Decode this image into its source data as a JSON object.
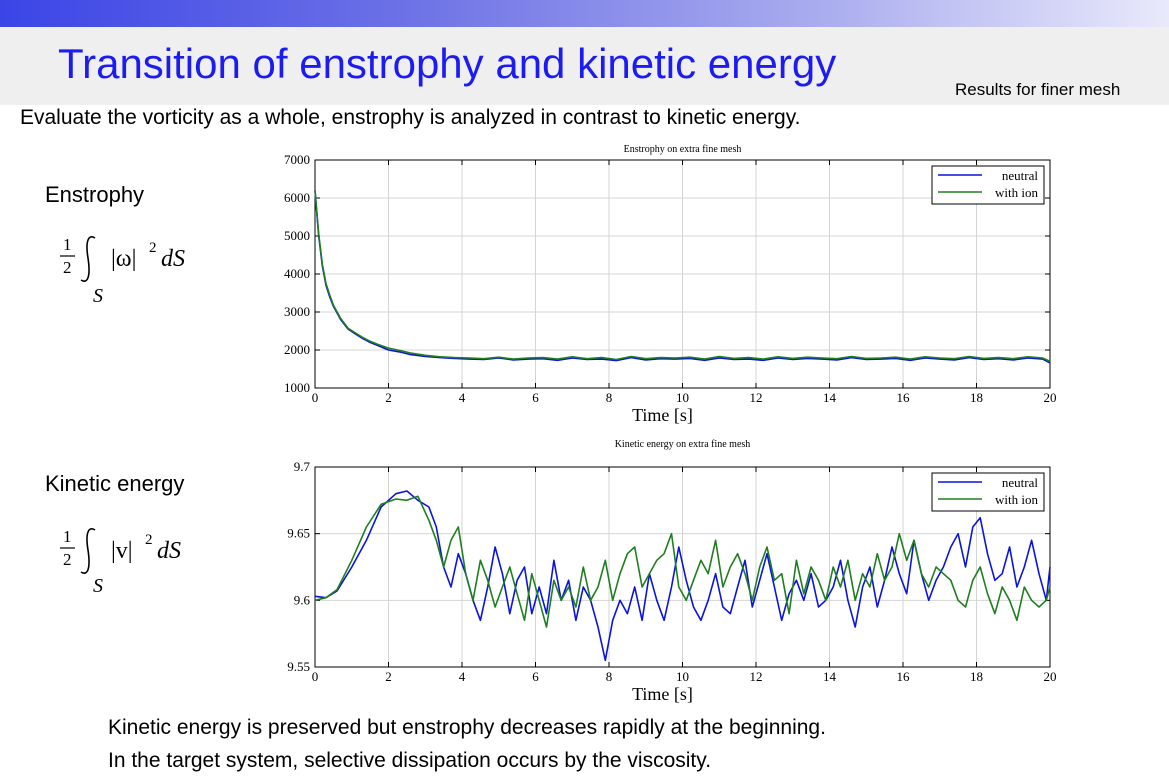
{
  "header": {
    "title": "Transition of enstrophy and kinetic energy",
    "note": "Results for finer mesh"
  },
  "intro_text": "Evaluate the vorticity as a whole, enstrophy is analyzed in contrast to kinetic energy.",
  "left_panel": {
    "enstrophy_label": "Enstrophy",
    "enstrophy_formula": {
      "coef_num": "1",
      "coef_den": "2",
      "subscript": "S",
      "integrand": "|ω|",
      "power": "2",
      "differential": "dS"
    },
    "kinetic_label": "Kinetic energy",
    "kinetic_formula": {
      "coef_num": "1",
      "coef_den": "2",
      "subscript": "S",
      "integrand": "|v|",
      "power": "2",
      "differential": "dS"
    }
  },
  "conclusion": [
    "Kinetic energy is preserved but enstrophy decreases rapidly at the beginning.",
    "In the target system, selective dissipation occurs by the viscosity."
  ],
  "colors": {
    "title": "#1c1cf2",
    "neutral": "#0a14dc",
    "with_ion": "#1f7f1f"
  },
  "chart_data": [
    {
      "type": "line",
      "title": "Enstrophy on extra fine mesh",
      "xlabel": "Time [s]",
      "ylabel": "",
      "xlim": [
        0,
        20
      ],
      "ylim": [
        1000,
        7000
      ],
      "xticks": [
        0,
        2,
        4,
        6,
        8,
        10,
        12,
        14,
        16,
        18,
        20
      ],
      "yticks": [
        1000,
        2000,
        3000,
        4000,
        5000,
        6000,
        7000
      ],
      "grid": true,
      "legend": "top-right",
      "x": [
        0,
        0.1,
        0.2,
        0.3,
        0.4,
        0.5,
        0.7,
        0.9,
        1.1,
        1.3,
        1.5,
        1.7,
        2,
        2.3,
        2.6,
        3,
        3.4,
        3.8,
        4.2,
        4.6,
        5,
        5.4,
        5.8,
        6.2,
        6.6,
        7,
        7.4,
        7.8,
        8.2,
        8.6,
        9,
        9.4,
        9.8,
        10.2,
        10.6,
        11,
        11.4,
        11.8,
        12.2,
        12.6,
        13,
        13.4,
        13.8,
        14.2,
        14.6,
        15,
        15.4,
        15.8,
        16.2,
        16.6,
        17,
        17.4,
        17.8,
        18.2,
        18.6,
        19,
        19.4,
        19.8,
        20
      ],
      "series": [
        {
          "name": "neutral",
          "values": [
            6200,
            5000,
            4200,
            3700,
            3400,
            3150,
            2800,
            2550,
            2420,
            2300,
            2200,
            2120,
            2000,
            1950,
            1880,
            1830,
            1800,
            1780,
            1760,
            1750,
            1790,
            1740,
            1760,
            1770,
            1730,
            1790,
            1750,
            1760,
            1720,
            1800,
            1740,
            1770,
            1760,
            1780,
            1730,
            1790,
            1750,
            1760,
            1730,
            1790,
            1750,
            1780,
            1760,
            1740,
            1800,
            1750,
            1760,
            1780,
            1730,
            1790,
            1760,
            1740,
            1800,
            1750,
            1770,
            1740,
            1790,
            1760,
            1660
          ]
        },
        {
          "name": "with ion",
          "values": [
            6200,
            5050,
            4250,
            3750,
            3450,
            3180,
            2830,
            2570,
            2450,
            2330,
            2230,
            2150,
            2050,
            1990,
            1920,
            1860,
            1820,
            1800,
            1790,
            1770,
            1810,
            1760,
            1790,
            1800,
            1760,
            1820,
            1770,
            1800,
            1750,
            1830,
            1770,
            1800,
            1790,
            1810,
            1760,
            1830,
            1780,
            1800,
            1760,
            1820,
            1780,
            1810,
            1790,
            1770,
            1830,
            1780,
            1790,
            1810,
            1760,
            1820,
            1790,
            1770,
            1830,
            1780,
            1800,
            1770,
            1820,
            1790,
            1700
          ]
        }
      ]
    },
    {
      "type": "line",
      "title": "Kinetic energy on extra fine mesh",
      "xlabel": "Time [s]",
      "ylabel": "",
      "xlim": [
        0,
        20
      ],
      "ylim": [
        9.55,
        9.7
      ],
      "xticks": [
        0,
        2,
        4,
        6,
        8,
        10,
        12,
        14,
        16,
        18,
        20
      ],
      "yticks": [
        9.55,
        9.6,
        9.65,
        9.7
      ],
      "grid": true,
      "legend": "top-right",
      "x": [
        0,
        0.3,
        0.6,
        1,
        1.4,
        1.8,
        2.2,
        2.5,
        2.8,
        3.1,
        3.3,
        3.5,
        3.7,
        3.9,
        4.1,
        4.3,
        4.5,
        4.7,
        4.9,
        5.1,
        5.3,
        5.5,
        5.7,
        5.9,
        6.1,
        6.3,
        6.5,
        6.7,
        6.9,
        7.1,
        7.3,
        7.5,
        7.7,
        7.9,
        8.1,
        8.3,
        8.5,
        8.7,
        8.9,
        9.1,
        9.3,
        9.5,
        9.7,
        9.9,
        10.1,
        10.3,
        10.5,
        10.7,
        10.9,
        11.1,
        11.3,
        11.5,
        11.7,
        11.9,
        12.1,
        12.3,
        12.5,
        12.7,
        12.9,
        13.1,
        13.3,
        13.5,
        13.7,
        13.9,
        14.1,
        14.3,
        14.5,
        14.7,
        14.9,
        15.1,
        15.3,
        15.5,
        15.7,
        15.9,
        16.1,
        16.3,
        16.5,
        16.7,
        16.9,
        17.1,
        17.3,
        17.5,
        17.7,
        17.9,
        18.1,
        18.3,
        18.5,
        18.7,
        18.9,
        19.1,
        19.3,
        19.5,
        19.7,
        19.9,
        20
      ],
      "series": [
        {
          "name": "neutral",
          "values": [
            9.603,
            9.602,
            9.607,
            9.625,
            9.645,
            9.67,
            9.68,
            9.682,
            9.675,
            9.67,
            9.655,
            9.625,
            9.61,
            9.635,
            9.62,
            9.6,
            9.585,
            9.61,
            9.64,
            9.62,
            9.59,
            9.615,
            9.625,
            9.59,
            9.61,
            9.59,
            9.63,
            9.6,
            9.615,
            9.585,
            9.61,
            9.6,
            9.58,
            9.555,
            9.585,
            9.6,
            9.59,
            9.61,
            9.585,
            9.62,
            9.6,
            9.585,
            9.61,
            9.64,
            9.615,
            9.595,
            9.585,
            9.6,
            9.62,
            9.595,
            9.59,
            9.61,
            9.63,
            9.595,
            9.615,
            9.635,
            9.61,
            9.585,
            9.605,
            9.615,
            9.6,
            9.62,
            9.595,
            9.6,
            9.61,
            9.63,
            9.6,
            9.58,
            9.61,
            9.625,
            9.595,
            9.615,
            9.64,
            9.62,
            9.605,
            9.645,
            9.62,
            9.6,
            9.615,
            9.625,
            9.64,
            9.65,
            9.625,
            9.655,
            9.662,
            9.635,
            9.615,
            9.62,
            9.64,
            9.61,
            9.625,
            9.645,
            9.62,
            9.6,
            9.625
          ]
        },
        {
          "name": "with ion",
          "values": [
            9.6,
            9.602,
            9.608,
            9.63,
            9.655,
            9.672,
            9.676,
            9.675,
            9.678,
            9.66,
            9.645,
            9.625,
            9.645,
            9.655,
            9.62,
            9.6,
            9.63,
            9.615,
            9.595,
            9.61,
            9.625,
            9.605,
            9.585,
            9.62,
            9.6,
            9.58,
            9.615,
            9.6,
            9.61,
            9.595,
            9.625,
            9.6,
            9.61,
            9.63,
            9.6,
            9.62,
            9.635,
            9.64,
            9.61,
            9.62,
            9.63,
            9.635,
            9.65,
            9.61,
            9.6,
            9.615,
            9.63,
            9.62,
            9.645,
            9.61,
            9.625,
            9.635,
            9.62,
            9.6,
            9.625,
            9.64,
            9.615,
            9.62,
            9.59,
            9.63,
            9.605,
            9.625,
            9.615,
            9.6,
            9.625,
            9.61,
            9.63,
            9.6,
            9.62,
            9.61,
            9.635,
            9.615,
            9.625,
            9.65,
            9.63,
            9.645,
            9.62,
            9.61,
            9.625,
            9.62,
            9.615,
            9.6,
            9.595,
            9.615,
            9.625,
            9.605,
            9.59,
            9.61,
            9.6,
            9.585,
            9.61,
            9.6,
            9.595,
            9.6,
            9.61
          ]
        }
      ]
    }
  ]
}
